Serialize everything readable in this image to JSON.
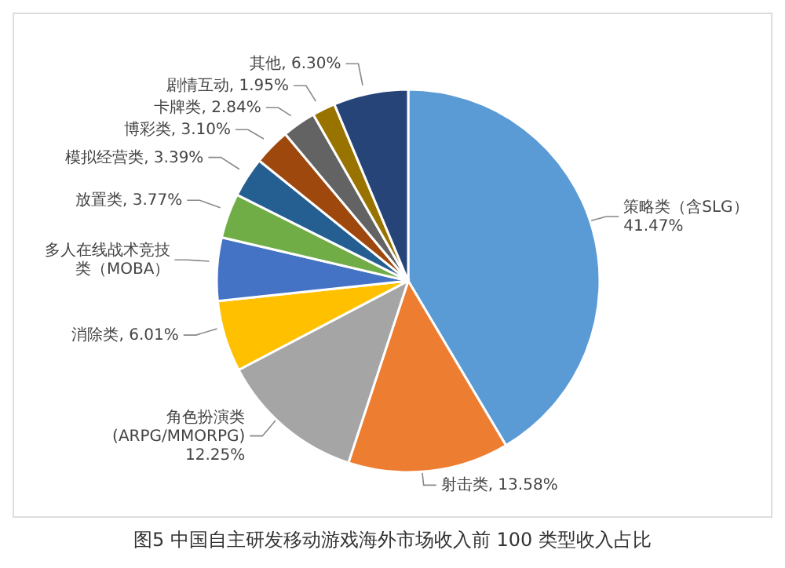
{
  "chart_data": {
    "type": "pie",
    "title": "图5 中国自主研发移动游戏海外市场收入前 100 类型收入占比",
    "categories": [
      "策略类（含SLG）",
      "射击类",
      "角色扮演类 (ARPG/MMORPG)",
      "消除类",
      "多人在线战术竞技类（MOBA）",
      "放置类",
      "模拟经营类",
      "博彩类",
      "卡牌类",
      "剧情互动",
      "其他"
    ],
    "values": [
      41.47,
      13.58,
      12.25,
      6.01,
      5.34,
      3.77,
      3.39,
      3.1,
      2.84,
      1.95,
      6.3
    ],
    "value_labels": [
      "41.47%",
      "13.58%",
      "12.25%",
      "6.01%",
      null,
      "3.77%",
      "3.39%",
      "3.10%",
      "2.84%",
      "1.95%",
      "6.30%"
    ],
    "colors": [
      "#5b9bd5",
      "#ed7d31",
      "#a5a5a5",
      "#ffc000",
      "#4472c4",
      "#70ad47",
      "#255e91",
      "#9e480e",
      "#636363",
      "#997300",
      "#264478"
    ]
  }
}
